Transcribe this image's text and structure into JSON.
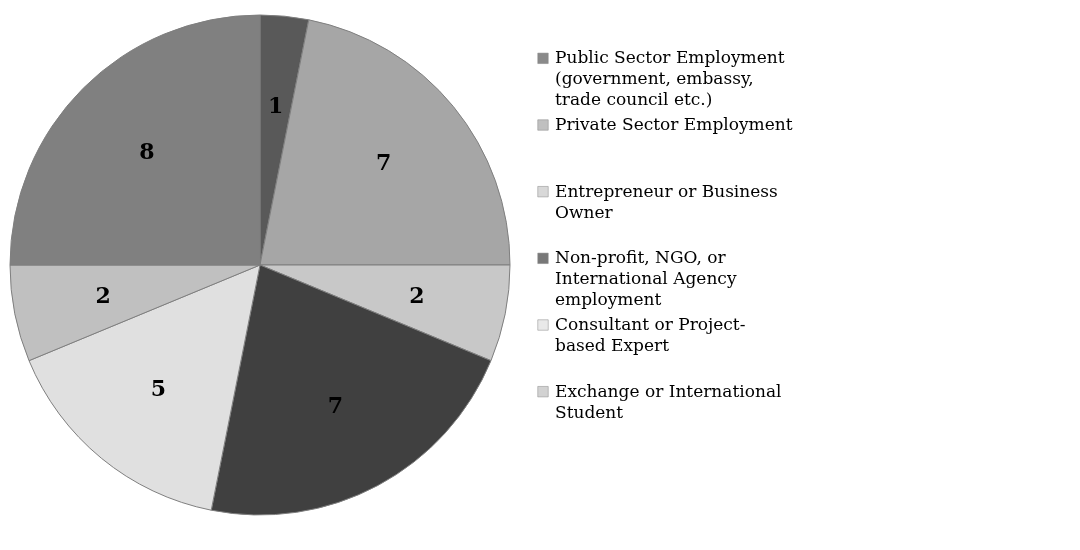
{
  "chart_data": {
    "type": "pie",
    "categories": [
      "Public Sector Employment (government, embassy, trade council etc.)",
      "Private Sector Employment",
      "Entrepreneur or Business Owner",
      "Non-profit, NGO, or International Agency employment",
      "Consultant or Project-based Expert",
      "Exchange or International Student",
      null
    ],
    "values": [
      1,
      7,
      2,
      7,
      5,
      2,
      8
    ],
    "colors": [
      "#595959",
      "#a6a6a6",
      "#c8c8c8",
      "#404040",
      "#e0e0e0",
      "#c0c0c0",
      "#808080"
    ],
    "data_labels": true,
    "legend": "right"
  }
}
